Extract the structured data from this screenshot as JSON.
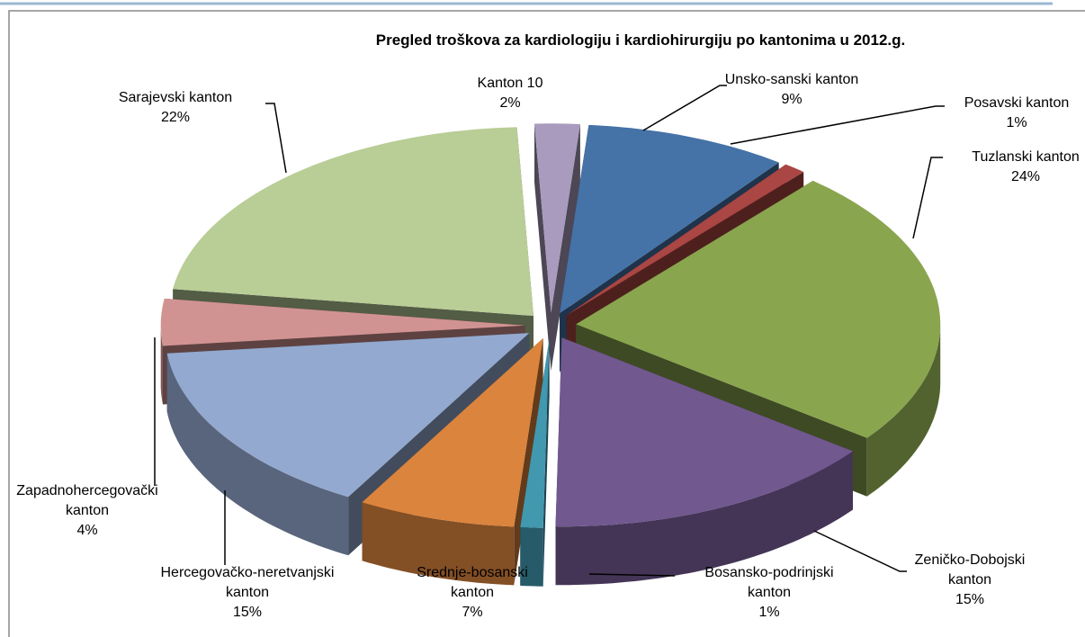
{
  "chart_data": {
    "type": "pie",
    "title": "Pregled troškova za kardiologiju i kardiohirurgiju po kantonima u 2012.g.",
    "categories": [
      "Unsko-sanski kanton",
      "Posavski kanton",
      "Tuzlanski kanton",
      "Zeničko-Dobojski kanton",
      "Bosansko-podrinjski kanton",
      "Srednje-bosanski kanton",
      "Hercegovačko-neretvanjski kanton",
      "Zapadnohercegovački kanton",
      "Sarajevski kanton",
      "Kanton 10"
    ],
    "values": [
      9,
      1,
      24,
      15,
      1,
      7,
      15,
      4,
      22,
      2
    ],
    "value_labels": [
      "9%",
      "1%",
      "24%",
      "15%",
      "1%",
      "7%",
      "15%",
      "4%",
      "22%",
      "2%"
    ],
    "colors": [
      "#4572a7",
      "#aa4643",
      "#89a54e",
      "#71588f",
      "#4198af",
      "#db843d",
      "#93a9cf",
      "#d19392",
      "#b9cd96",
      "#a99bbd"
    ]
  }
}
